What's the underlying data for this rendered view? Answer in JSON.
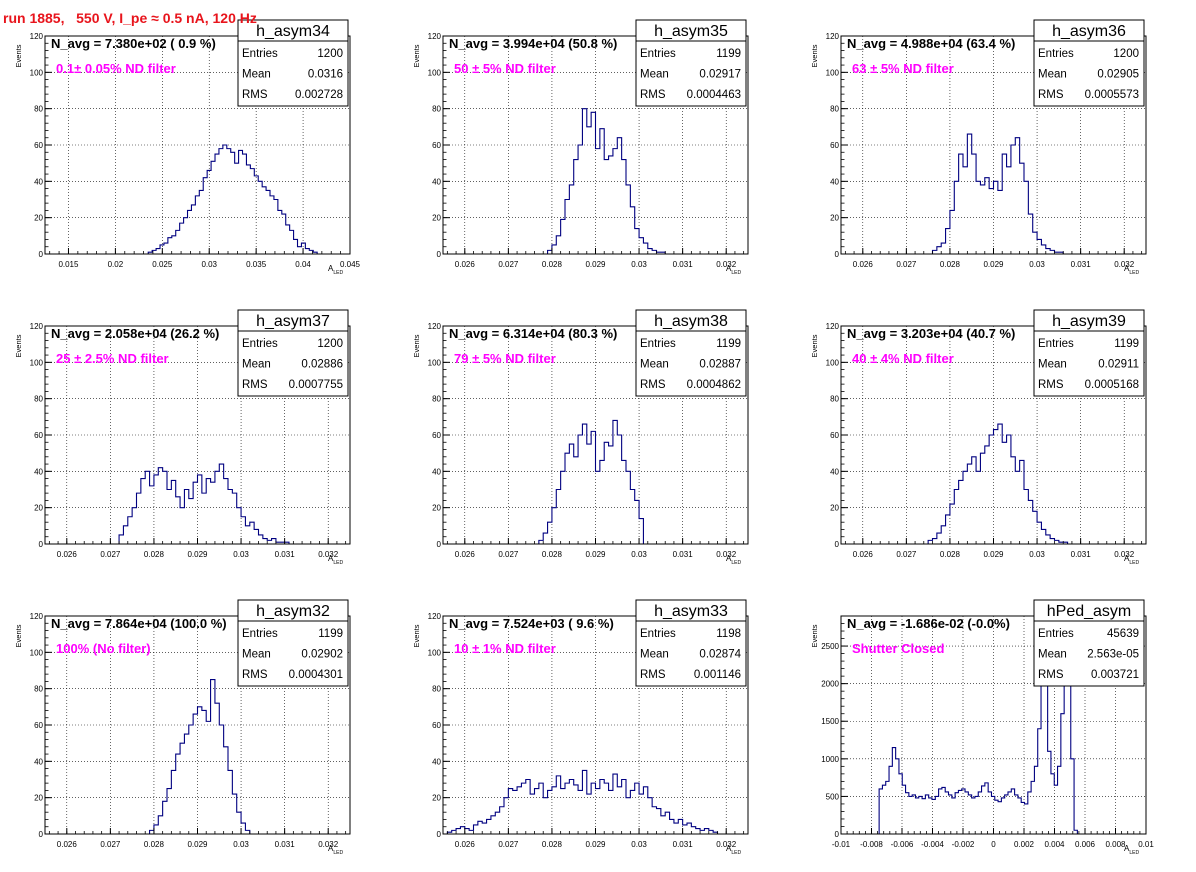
{
  "run_title": "run 1885,   550 V, I_pe ≈ 0.5 nA, 120 Hz",
  "colors": {
    "histogram_line": "#000080",
    "filter_note": "#ff00ff",
    "run_title": "#e8141c",
    "grid": "#000000",
    "axes": "#000000",
    "stats_box_border": "#000000"
  },
  "stat_labels": {
    "entries": "Entries",
    "mean": "Mean",
    "rms": "RMS"
  },
  "x_axis_label": "A",
  "x_axis_label_subscript": "LED",
  "y_axis_label": "Events",
  "chart_data": [
    {
      "type": "bar",
      "name": "h_asym34",
      "navg": "N_avg = 7.380e+02 ( 0.9 %)",
      "filter": "0.1± 0.05% ND filter",
      "entries": "1200",
      "mean": "0.0316",
      "rms": "0.002728",
      "xlim": [
        0.0125,
        0.045
      ],
      "xticks": [
        0.015,
        0.02,
        0.025,
        0.03,
        0.035,
        0.04,
        0.045
      ],
      "xtick_labels": [
        "0.015",
        "0.02",
        "0.025",
        "0.03",
        "0.035",
        "0.04",
        "0.045"
      ],
      "ylim": [
        0,
        120
      ],
      "yticks": [
        0,
        20,
        40,
        60,
        80,
        100,
        120
      ],
      "bin_edges_range": [
        0.0235,
        0.0415
      ],
      "values": [
        1,
        2,
        3,
        5,
        6,
        9,
        10,
        13,
        17,
        20,
        24,
        27,
        32,
        35,
        42,
        46,
        51,
        55,
        58,
        60,
        58,
        56,
        50,
        57,
        55,
        49,
        47,
        43,
        40,
        37,
        35,
        32,
        30,
        24,
        22,
        16,
        13,
        8,
        4,
        6,
        3,
        2,
        1
      ]
    },
    {
      "type": "bar",
      "name": "h_asym35",
      "navg": "N_avg = 3.994e+04 (50.8 %)",
      "filter": "50 ± 5% ND filter",
      "entries": "1199",
      "mean": "0.02917",
      "rms": "0.0004463",
      "xlim": [
        0.0255,
        0.0325
      ],
      "xticks": [
        0.026,
        0.027,
        0.028,
        0.029,
        0.03,
        0.031,
        0.032
      ],
      "xtick_labels": [
        "0.026",
        "0.027",
        "0.028",
        "0.029",
        "0.03",
        "0.031",
        "0.032"
      ],
      "ylim": [
        0,
        120
      ],
      "yticks": [
        0,
        20,
        40,
        60,
        80,
        100,
        120
      ],
      "bin_edges_range": [
        0.0279,
        0.0306
      ],
      "values": [
        2,
        5,
        10,
        19,
        30,
        38,
        52,
        60,
        80,
        70,
        78,
        58,
        69,
        52,
        54,
        58,
        64,
        52,
        38,
        26,
        14,
        9,
        6,
        3,
        2,
        1,
        1
      ]
    },
    {
      "type": "bar",
      "name": "h_asym36",
      "navg": "N_avg = 4.988e+04 (63.4 %)",
      "filter": "63 ± 5% ND filter",
      "entries": "1200",
      "mean": "0.02905",
      "rms": "0.0005573",
      "xlim": [
        0.0255,
        0.0325
      ],
      "xticks": [
        0.026,
        0.027,
        0.028,
        0.029,
        0.03,
        0.031,
        0.032
      ],
      "xtick_labels": [
        "0.026",
        "0.027",
        "0.028",
        "0.029",
        "0.03",
        "0.031",
        "0.032"
      ],
      "ylim": [
        0,
        120
      ],
      "yticks": [
        0,
        20,
        40,
        60,
        80,
        100,
        120
      ],
      "bin_edges_range": [
        0.0276,
        0.0306
      ],
      "values": [
        2,
        4,
        6,
        14,
        24,
        40,
        55,
        48,
        66,
        55,
        40,
        38,
        42,
        36,
        40,
        35,
        55,
        48,
        60,
        64,
        50,
        40,
        22,
        12,
        8,
        5,
        3,
        2,
        1,
        1
      ]
    },
    {
      "type": "bar",
      "name": "h_asym37",
      "navg": "N_avg = 2.058e+04 (26.2 %)",
      "filter": "25 ± 2.5% ND filter",
      "entries": "1200",
      "mean": "0.02886",
      "rms": "0.0007755",
      "xlim": [
        0.0255,
        0.0325
      ],
      "xticks": [
        0.026,
        0.027,
        0.028,
        0.029,
        0.03,
        0.031,
        0.032
      ],
      "xtick_labels": [
        "0.026",
        "0.027",
        "0.028",
        "0.029",
        "0.03",
        "0.031",
        "0.032"
      ],
      "ylim": [
        0,
        120
      ],
      "yticks": [
        0,
        20,
        40,
        60,
        80,
        100,
        120
      ],
      "bin_edges_range": [
        0.0272,
        0.0312
      ],
      "values": [
        5,
        10,
        15,
        20,
        28,
        36,
        40,
        32,
        38,
        42,
        40,
        30,
        35,
        26,
        20,
        30,
        25,
        34,
        38,
        28,
        36,
        34,
        40,
        44,
        36,
        30,
        28,
        20,
        15,
        10,
        12,
        8,
        5,
        3,
        2,
        3,
        1,
        1,
        1,
        0
      ]
    },
    {
      "type": "bar",
      "name": "h_asym38",
      "navg": "N_avg = 6.314e+04 (80.3 %)",
      "filter": "79 ± 5% ND filter",
      "entries": "1199",
      "mean": "0.02887",
      "rms": "0.0004862",
      "xlim": [
        0.0255,
        0.0325
      ],
      "xticks": [
        0.026,
        0.027,
        0.028,
        0.029,
        0.03,
        0.031,
        0.032
      ],
      "xtick_labels": [
        "0.026",
        "0.027",
        "0.028",
        "0.029",
        "0.03",
        "0.031",
        "0.032"
      ],
      "ylim": [
        0,
        120
      ],
      "yticks": [
        0,
        20,
        40,
        60,
        80,
        100,
        120
      ],
      "bin_edges_range": [
        0.0277,
        0.0301
      ],
      "values": [
        2,
        6,
        12,
        20,
        30,
        40,
        50,
        55,
        48,
        60,
        66,
        55,
        62,
        40,
        46,
        56,
        54,
        68,
        60,
        46,
        40,
        30,
        24,
        14
      ]
    },
    {
      "type": "bar",
      "name": "h_asym39",
      "navg": "N_avg = 3.203e+04 (40.7 %)",
      "filter": "40 ± 4% ND filter",
      "entries": "1199",
      "mean": "0.02911",
      "rms": "0.0005168",
      "xlim": [
        0.0255,
        0.0325
      ],
      "xticks": [
        0.026,
        0.027,
        0.028,
        0.029,
        0.03,
        0.031,
        0.032
      ],
      "xtick_labels": [
        "0.026",
        "0.027",
        "0.028",
        "0.029",
        "0.03",
        "0.031",
        "0.032"
      ],
      "ylim": [
        0,
        120
      ],
      "yticks": [
        0,
        20,
        40,
        60,
        80,
        100,
        120
      ],
      "bin_edges_range": [
        0.0275,
        0.0307
      ],
      "values": [
        2,
        3,
        6,
        10,
        16,
        22,
        30,
        35,
        40,
        44,
        48,
        40,
        50,
        54,
        60,
        63,
        66,
        56,
        60,
        48,
        40,
        46,
        30,
        24,
        18,
        12,
        8,
        5,
        3,
        2,
        1,
        1
      ]
    },
    {
      "type": "bar",
      "name": "h_asym32",
      "navg": "N_avg = 7.864e+04 (100.0 %)",
      "filter": "100% (No filter)",
      "entries": "1199",
      "mean": "0.02902",
      "rms": "0.0004301",
      "xlim": [
        0.0255,
        0.0325
      ],
      "xticks": [
        0.026,
        0.027,
        0.028,
        0.029,
        0.03,
        0.031,
        0.032
      ],
      "xtick_labels": [
        "0.026",
        "0.027",
        "0.028",
        "0.029",
        "0.03",
        "0.031",
        "0.032"
      ],
      "ylim": [
        0,
        120
      ],
      "yticks": [
        0,
        20,
        40,
        60,
        80,
        100,
        120
      ],
      "bin_edges_range": [
        0.0279,
        0.0302
      ],
      "values": [
        2,
        5,
        10,
        18,
        25,
        35,
        44,
        50,
        55,
        60,
        66,
        70,
        68,
        62,
        85,
        72,
        60,
        48,
        35,
        22,
        12,
        6,
        2
      ]
    },
    {
      "type": "bar",
      "name": "h_asym33",
      "navg": "N_avg = 7.524e+03 ( 9.6 %)",
      "filter": "10 ± 1% ND filter",
      "entries": "1198",
      "mean": "0.02874",
      "rms": "0.001146",
      "xlim": [
        0.0255,
        0.0325
      ],
      "xticks": [
        0.026,
        0.027,
        0.028,
        0.029,
        0.03,
        0.031,
        0.032
      ],
      "xtick_labels": [
        "0.026",
        "0.027",
        "0.028",
        "0.029",
        "0.03",
        "0.031",
        "0.032"
      ],
      "ylim": [
        0,
        120
      ],
      "yticks": [
        0,
        20,
        40,
        60,
        80,
        100,
        120
      ],
      "bin_edges_range": [
        0.0256,
        0.0318
      ],
      "values": [
        1,
        2,
        3,
        4,
        3,
        2,
        5,
        7,
        6,
        8,
        10,
        12,
        15,
        20,
        25,
        24,
        26,
        28,
        30,
        22,
        25,
        28,
        20,
        24,
        26,
        32,
        25,
        28,
        30,
        27,
        24,
        35,
        22,
        28,
        25,
        30,
        28,
        24,
        33,
        26,
        30,
        20,
        24,
        28,
        22,
        26,
        20,
        15,
        14,
        10,
        12,
        8,
        6,
        8,
        5,
        6,
        4,
        3,
        2,
        3,
        2,
        1
      ]
    },
    {
      "type": "bar",
      "name": "hPed_asym",
      "navg": "N_avg = -1.686e-02 (-0.0%)",
      "filter": "Shutter Closed",
      "entries": "45639",
      "mean": "2.563e-05",
      "rms": "0.003721",
      "xlim": [
        -0.01,
        0.01
      ],
      "xticks": [
        -0.01,
        -0.008,
        -0.006,
        -0.004,
        -0.002,
        0,
        0.002,
        0.004,
        0.006,
        0.008,
        0.01
      ],
      "xtick_labels": [
        "-0.01",
        "-0.008",
        "-0.006",
        "-0.004",
        "-0.002",
        "0",
        "0.002",
        "0.004",
        "0.006",
        "0.008",
        "0.01"
      ],
      "ylim": [
        0,
        2900
      ],
      "yticks": [
        0,
        500,
        1000,
        1500,
        2000,
        2500
      ],
      "bin_edges_range": [
        -0.0075,
        0.0055
      ],
      "values": [
        600,
        650,
        700,
        900,
        1150,
        1000,
        800,
        650,
        550,
        500,
        520,
        480,
        500,
        470,
        520,
        480,
        460,
        500,
        600,
        620,
        560,
        520,
        480,
        550,
        580,
        600,
        560,
        520,
        480,
        500,
        560,
        640,
        680,
        560,
        500,
        450,
        430,
        480,
        520,
        560,
        600,
        520,
        480,
        420,
        400,
        560,
        700,
        900,
        1400,
        2800,
        2000,
        1100,
        800,
        650,
        900,
        1600,
        2000,
        2300,
        1000,
        50
      ]
    }
  ]
}
